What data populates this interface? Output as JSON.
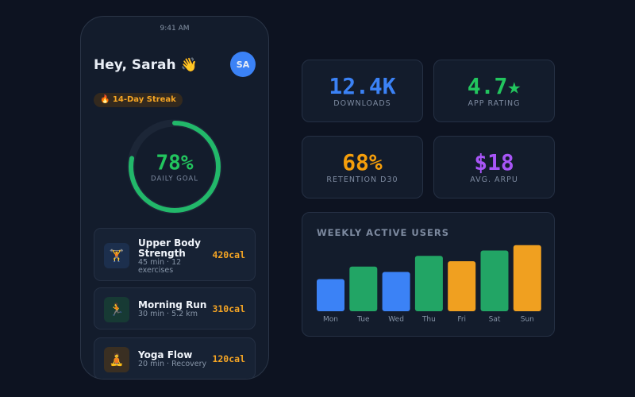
{
  "phone": {
    "time": "9:41 AM",
    "greeting": "Hey, Sarah 👋",
    "avatar": "SA",
    "streak": "🔥 14-Day Streak",
    "ring": {
      "value": 78,
      "label": "78%",
      "caption": "DAILY GOAL",
      "lim": [
        0,
        100
      ]
    },
    "workouts": [
      {
        "icon": "🏋️",
        "title": "Upper Body Strength",
        "meta": "45 min · 12 exercises",
        "cal": "420cal"
      },
      {
        "icon": "🏃",
        "title": "Morning Run",
        "meta": "30 min · 5.2 km",
        "cal": "310cal"
      },
      {
        "icon": "🧘",
        "title": "Yoga Flow",
        "meta": "20 min · Recovery",
        "cal": "120cal"
      }
    ]
  },
  "stats": [
    {
      "value": "12.4K",
      "label": "DOWNLOADS",
      "color": "#3b82f6"
    },
    {
      "value": "4.7★",
      "label": "APP RATING",
      "color": "#22c55e"
    },
    {
      "value": "68%",
      "label": "RETENTION D30",
      "color": "#f59e0b"
    },
    {
      "value": "$18",
      "label": "AVG. ARPU",
      "color": "#a855f7"
    }
  ],
  "chart_data": {
    "type": "bar",
    "title": "WEEKLY ACTIVE USERS",
    "categories": [
      "Mon",
      "Tue",
      "Wed",
      "Thu",
      "Fri",
      "Sat",
      "Sun"
    ],
    "values": [
      36,
      50,
      44,
      62,
      56,
      68,
      74
    ],
    "colors": [
      "#3b82f6",
      "#22a565",
      "#3b82f6",
      "#22a565",
      "#f0a020",
      "#22a565",
      "#f0a020"
    ],
    "ylim": [
      0,
      80
    ]
  }
}
